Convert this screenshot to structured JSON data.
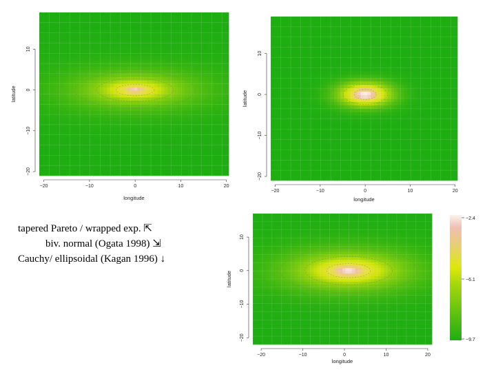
{
  "caption": {
    "line1": "tapered Pareto / wrapped exp. ⇱",
    "line2": "biv. normal (Ogata 1998) ⇲",
    "line3": "Cauchy/ ellipsoidal (Kagan 1996) ↓"
  },
  "colors": {
    "low": "#1fae12",
    "mid": "#cfe40a",
    "midHigh": "#e8e040",
    "high": "#efc2a8",
    "peak": "#fbf2ee"
  },
  "chart_data": [
    {
      "type": "heatmap",
      "model": "tapered-pareto",
      "xlabel": "longitude",
      "ylabel": "latitude",
      "xlim": [
        -21,
        20.5
      ],
      "ylim": [
        -21,
        19
      ],
      "xticks": [
        -20,
        -10,
        0,
        10,
        20
      ],
      "yticks": [
        -20,
        -10,
        0,
        10
      ],
      "center": [
        0,
        0
      ],
      "spread": [
        12,
        4
      ],
      "power": 1.15
    },
    {
      "type": "heatmap",
      "model": "bivariate-normal",
      "xlabel": "longitude",
      "ylabel": "latitude",
      "xlim": [
        -21,
        20.5
      ],
      "ylim": [
        -21,
        19
      ],
      "xticks": [
        -20,
        -10,
        0,
        10,
        20
      ],
      "yticks": [
        -20,
        -10,
        0,
        10
      ],
      "center": [
        0,
        0
      ],
      "spread": [
        7,
        3.5
      ],
      "power": 2
    },
    {
      "type": "heatmap",
      "model": "cauchy-ellipsoidal",
      "xlabel": "longitude",
      "ylabel": "latitude",
      "xlim": [
        -22,
        21
      ],
      "ylim": [
        -22,
        17
      ],
      "xticks": [
        -20,
        -10,
        0,
        10,
        20
      ],
      "yticks": [
        -20,
        -10,
        0,
        10
      ],
      "center": [
        1,
        0
      ],
      "spread": [
        15,
        6
      ],
      "power": 1.4,
      "colorbar": {
        "ticks": [
          "-2.4",
          "-6.1",
          "-9.7"
        ],
        "range": [
          -9.7,
          -2.4
        ]
      }
    }
  ]
}
